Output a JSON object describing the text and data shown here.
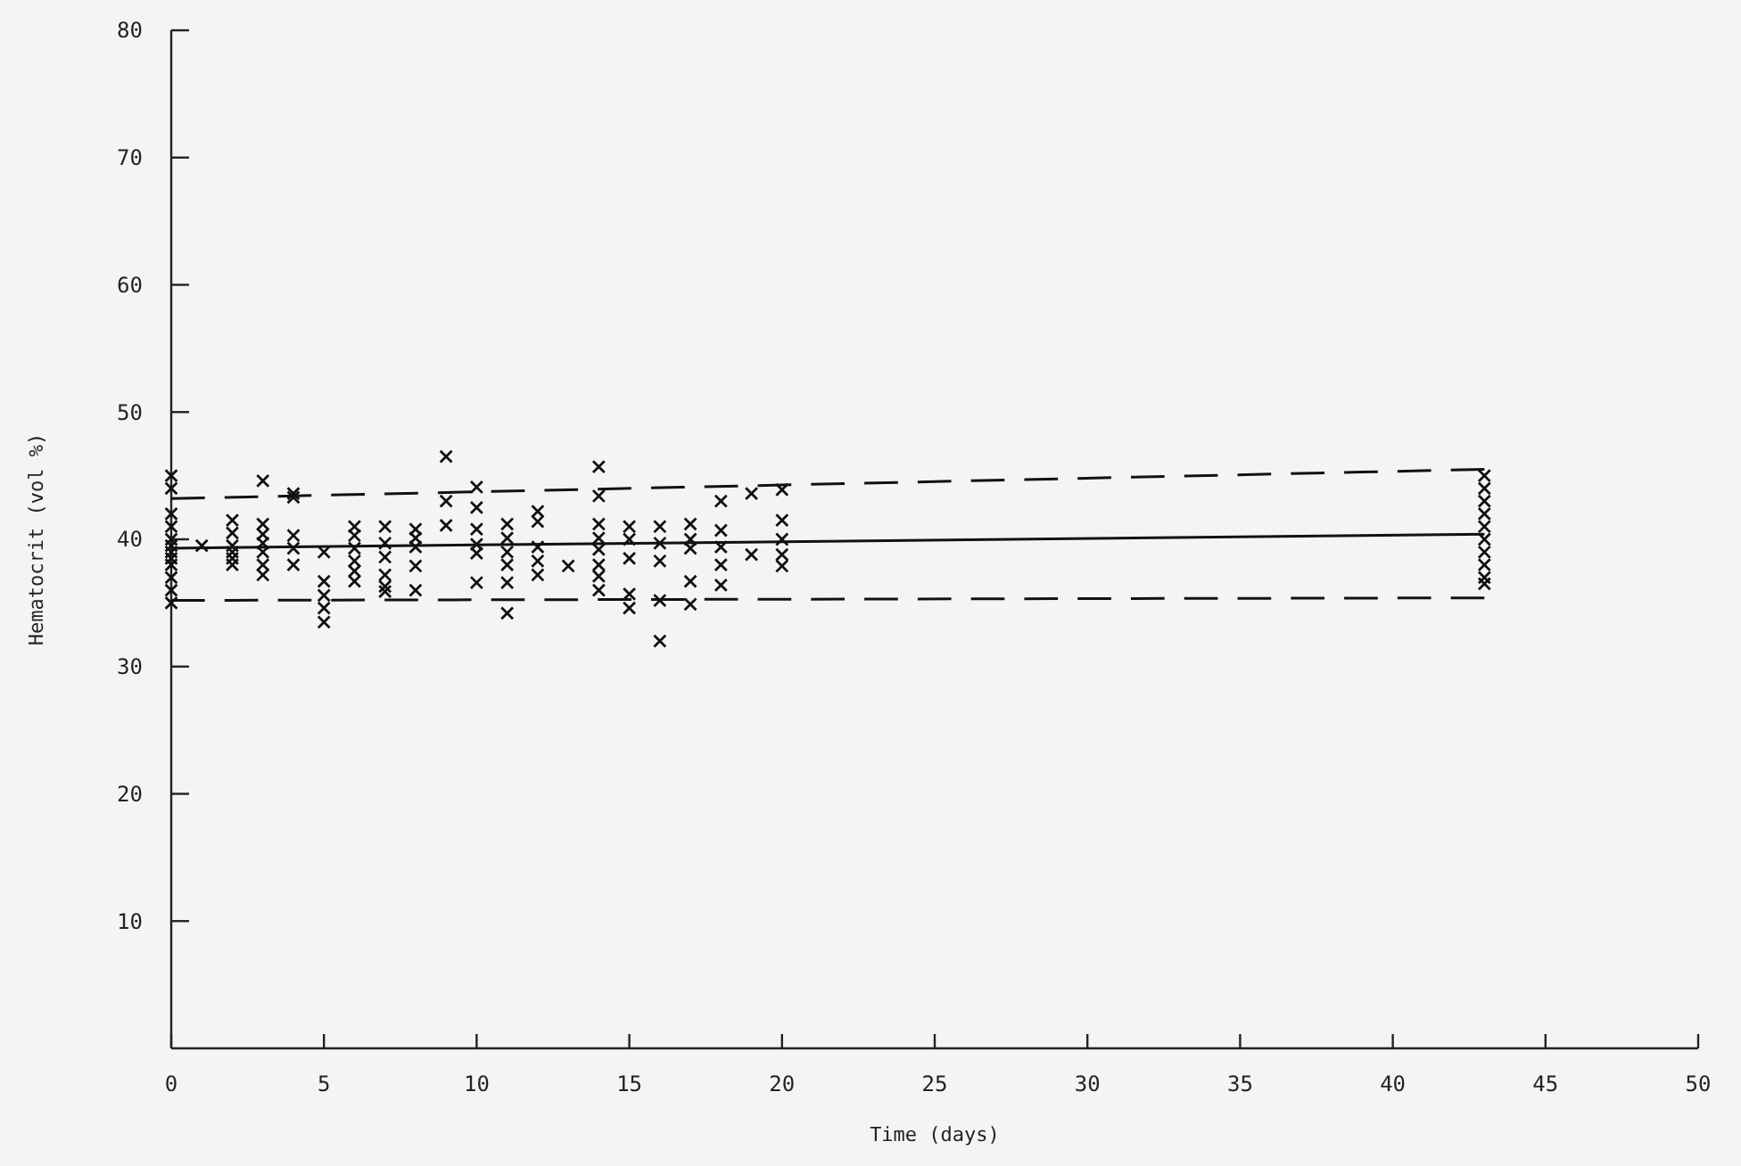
{
  "chart_data": {
    "type": "scatter",
    "xlabel": "Time (days)",
    "ylabel": "Hematocrit (vol %)",
    "xlim": [
      0,
      50
    ],
    "ylim": [
      0,
      80
    ],
    "xticks": [
      0,
      5,
      10,
      15,
      20,
      25,
      30,
      35,
      40,
      45,
      50
    ],
    "yticks": [
      10,
      20,
      30,
      40,
      50,
      60,
      70,
      80
    ],
    "grid": false,
    "series": [
      {
        "color": "#111111",
        "marker": "cross",
        "x": [
          0,
          0,
          0,
          0,
          0,
          0,
          0,
          0,
          0,
          0,
          0,
          0,
          1,
          2,
          2,
          2,
          2,
          2,
          2,
          3,
          3,
          3,
          3,
          3,
          3,
          3,
          4,
          4,
          4,
          4,
          4,
          5,
          5,
          5,
          5,
          5,
          6,
          6,
          6,
          6,
          6,
          6,
          7,
          7,
          7,
          7,
          7,
          7,
          8,
          8,
          8,
          8,
          8,
          9,
          9,
          9,
          10,
          10,
          10,
          10,
          10,
          10,
          11,
          11,
          11,
          11,
          11,
          11,
          12,
          12,
          12,
          12,
          12,
          13,
          14,
          14,
          14,
          14,
          14,
          14,
          14,
          14,
          15,
          15,
          15,
          15,
          15,
          16,
          16,
          16,
          16,
          16,
          17,
          17,
          17,
          17,
          17,
          18,
          18,
          18,
          18,
          18,
          19,
          19,
          20,
          20,
          20,
          20,
          20,
          43,
          43,
          43,
          43,
          43,
          43,
          43,
          43,
          43,
          43
        ],
        "values": [
          45,
          44,
          42,
          41,
          40,
          39.5,
          39,
          38.5,
          38,
          37,
          36,
          35,
          39.5,
          41.5,
          40.5,
          39.5,
          39,
          38.5,
          38,
          44.6,
          41.2,
          40.4,
          39.7,
          39,
          38,
          37.2,
          43.6,
          43.3,
          40.3,
          39.3,
          38,
          39,
          36.7,
          35.6,
          34.6,
          33.5,
          41,
          40.3,
          39.3,
          38.3,
          37.5,
          36.7,
          41,
          39.7,
          38.6,
          37.2,
          36.3,
          35.9,
          40.8,
          40.1,
          39.4,
          37.9,
          36,
          46.5,
          43,
          41.1,
          44.1,
          42.5,
          40.8,
          39.6,
          38.9,
          36.6,
          41.2,
          40.1,
          39,
          38,
          36.6,
          34.2,
          42.2,
          41.4,
          39.4,
          38.3,
          37.2,
          37.9,
          45.7,
          43.4,
          41.2,
          40.1,
          39.2,
          38,
          37.1,
          36,
          41,
          40,
          38.5,
          35.7,
          34.6,
          41,
          39.7,
          38.3,
          35.2,
          32,
          41.2,
          40,
          39.3,
          36.7,
          34.9,
          43,
          40.7,
          39.4,
          38,
          36.4,
          43.6,
          38.8,
          43.9,
          41.5,
          40,
          38.8,
          37.9,
          45,
          44,
          43,
          42,
          41,
          40,
          39,
          38,
          37,
          36.5
        ]
      },
      {
        "type": "line",
        "color": "#111111",
        "line_style": "solid",
        "x": [
          0,
          43
        ],
        "values": [
          39.3,
          40.4
        ]
      },
      {
        "type": "line",
        "color": "#111111",
        "line_style": "dashed",
        "x": [
          0,
          43
        ],
        "values": [
          43.2,
          45.5
        ]
      },
      {
        "type": "line",
        "color": "#111111",
        "line_style": "dashed",
        "x": [
          0,
          43
        ],
        "values": [
          35.2,
          35.4
        ]
      }
    ]
  }
}
